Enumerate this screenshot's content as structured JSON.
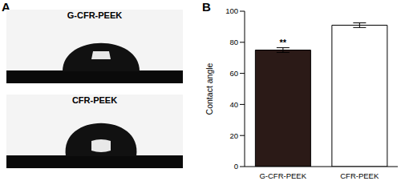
{
  "panel_labels": [
    "A",
    "B"
  ],
  "images": {
    "labels": [
      "G-CFR-PEEK",
      "CFR-PEEK"
    ]
  },
  "chart_data": {
    "type": "bar",
    "categories": [
      "G-CFR-PEEK",
      "CFR-PEEK"
    ],
    "values": [
      75,
      91
    ],
    "errors": [
      1.5,
      1.5
    ],
    "colors": [
      "#2b1a17",
      "#ffffff"
    ],
    "y_label": "Contact angle",
    "ylim": [
      0,
      100
    ],
    "yticks": [
      0,
      20,
      40,
      60,
      80,
      100
    ],
    "annotations": [
      {
        "category": "G-CFR-PEEK",
        "text": "**"
      }
    ]
  }
}
